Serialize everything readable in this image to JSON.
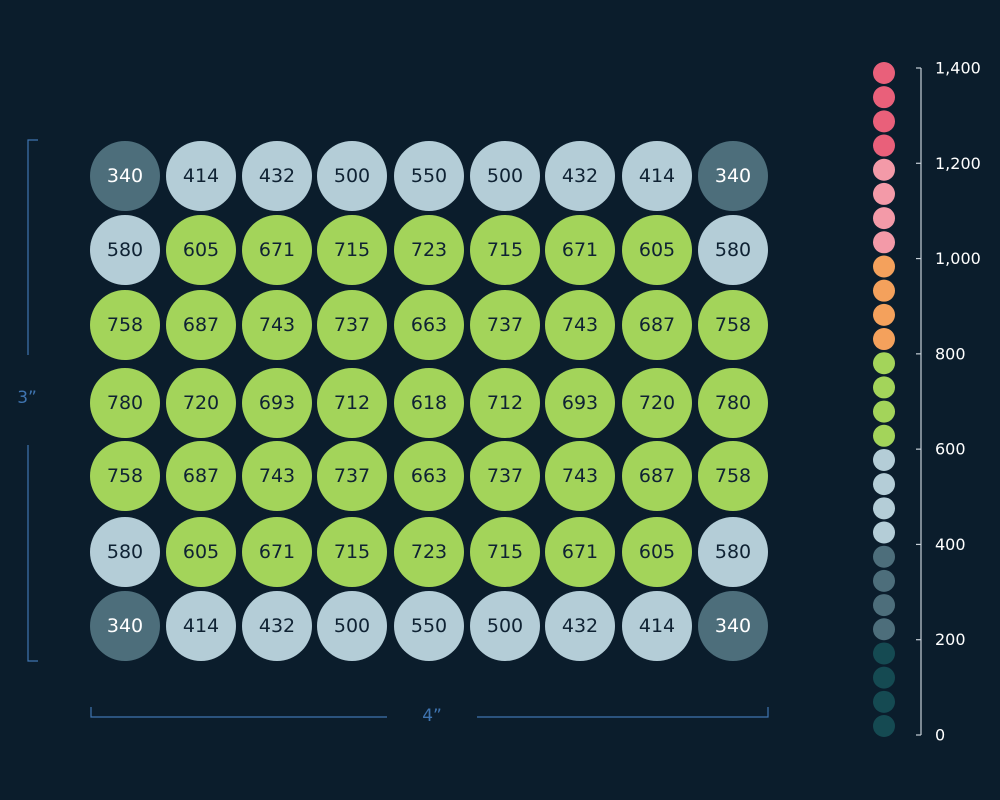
{
  "chart_data": {
    "type": "heatmap",
    "x_dimension_label": "4”",
    "y_dimension_label": "3”",
    "rows": [
      [
        340,
        414,
        432,
        500,
        550,
        500,
        432,
        414,
        340
      ],
      [
        580,
        605,
        671,
        715,
        723,
        715,
        671,
        605,
        580
      ],
      [
        758,
        687,
        743,
        737,
        663,
        737,
        743,
        687,
        758
      ],
      [
        780,
        720,
        693,
        712,
        618,
        712,
        693,
        720,
        780
      ],
      [
        758,
        687,
        743,
        737,
        663,
        737,
        743,
        687,
        758
      ],
      [
        580,
        605,
        671,
        715,
        723,
        715,
        671,
        605,
        580
      ],
      [
        340,
        414,
        432,
        500,
        550,
        500,
        432,
        414,
        340
      ]
    ],
    "color_scale": {
      "range": [
        0,
        1400
      ],
      "ticks": [
        "0",
        "200",
        "400",
        "600",
        "800",
        "1,000",
        "1,200",
        "1,400"
      ],
      "bands": [
        {
          "min": 0,
          "max": 200,
          "color": "#154a52"
        },
        {
          "min": 200,
          "max": 400,
          "color": "#4d6e7b"
        },
        {
          "min": 400,
          "max": 600,
          "color": "#b4cdd7"
        },
        {
          "min": 600,
          "max": 800,
          "color": "#a3d45a"
        },
        {
          "min": 800,
          "max": 1000,
          "color": "#f4a15c"
        },
        {
          "min": 1000,
          "max": 1200,
          "color": "#f39aa8"
        },
        {
          "min": 1200,
          "max": 1400,
          "color": "#e9607a"
        }
      ],
      "dots_per_band": 4
    },
    "label_colors": {
      "dark_cell_text": "#ffffff",
      "light_cell_text": "#0f2233"
    },
    "bracket_color": "#3f74b0",
    "axis_color": "#c7d0d8"
  }
}
